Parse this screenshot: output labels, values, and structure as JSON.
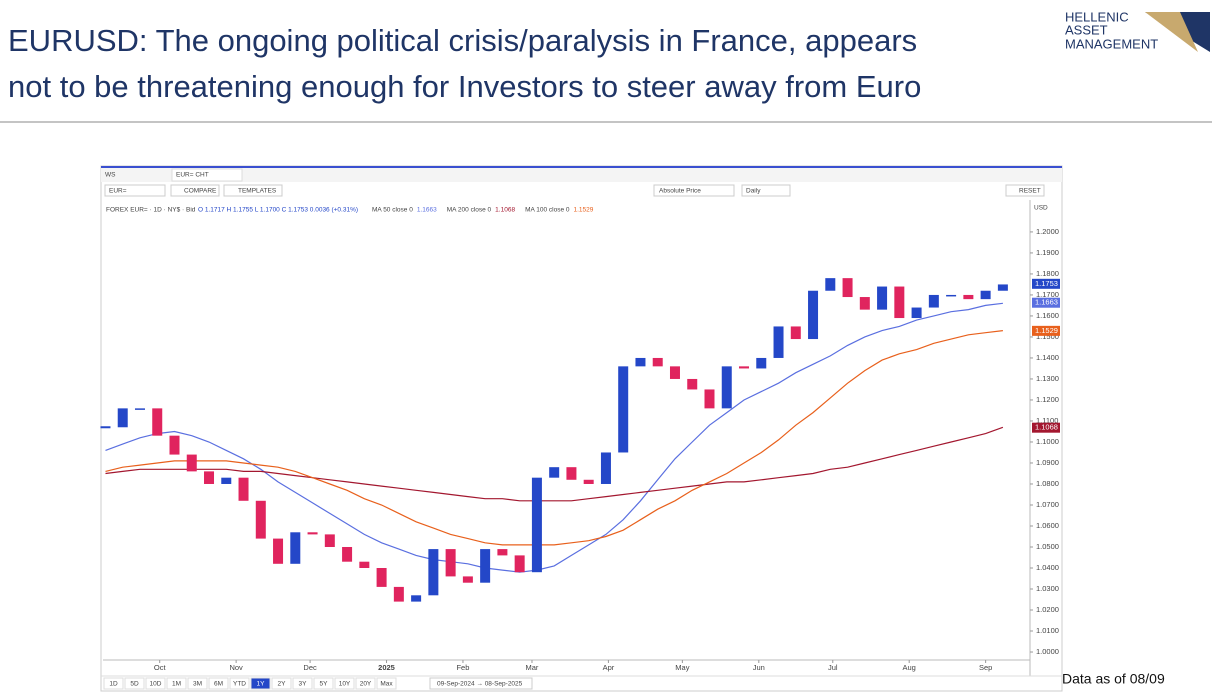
{
  "slide": {
    "title_lines": [
      "EURUSD: The ongoing political crisis/paralysis in France, appears",
      "not to be threatening enough for Investors to steer away from Euro"
    ],
    "logo_lines": [
      "HELLENIC",
      "ASSET",
      "MANAGEMENT"
    ],
    "note": "Data as of 08/09"
  },
  "toolbar": {
    "workspace": "WS",
    "tab": "EUR= CHT",
    "symbol": "EUR=",
    "compare": "COMPARE",
    "templates": "TEMPLATES",
    "price_mode": "Absolute Price",
    "interval": "Daily",
    "reset": "RESET",
    "currency": "USD",
    "ranges": [
      "1D",
      "5D",
      "10D",
      "1M",
      "3M",
      "6M",
      "YTD",
      "1Y",
      "2Y",
      "3Y",
      "5Y",
      "10Y",
      "20Y",
      "Max"
    ],
    "active_range": 7,
    "date_range": "09-Sep-2024 → 08-Sep-2025"
  },
  "chart_data": {
    "type": "candlestick",
    "legend_instrument": "FOREX EUR= · 1D · NY$ · Bid",
    "legend_ohlc": "O 1.1717  H 1.1755  L 1.1700  C 1.1753  0.0036 (+0.31%)",
    "up_color": "#2447c8",
    "down_color": "#e0245e",
    "x": [
      "2024-09-09",
      "2024-09-16",
      "2024-09-23",
      "2024-09-30",
      "2024-10-07",
      "2024-10-14",
      "2024-10-21",
      "2024-10-28",
      "2024-11-04",
      "2024-11-11",
      "2024-11-18",
      "2024-11-25",
      "2024-12-02",
      "2024-12-09",
      "2024-12-16",
      "2024-12-23",
      "2024-12-30",
      "2025-01-06",
      "2025-01-13",
      "2025-01-20",
      "2025-01-27",
      "2025-02-03",
      "2025-02-10",
      "2025-02-17",
      "2025-02-24",
      "2025-03-03",
      "2025-03-10",
      "2025-03-17",
      "2025-03-24",
      "2025-03-31",
      "2025-04-07",
      "2025-04-14",
      "2025-04-21",
      "2025-04-28",
      "2025-05-05",
      "2025-05-12",
      "2025-05-19",
      "2025-05-26",
      "2025-06-02",
      "2025-06-09",
      "2025-06-16",
      "2025-06-23",
      "2025-06-30",
      "2025-07-07",
      "2025-07-14",
      "2025-07-21",
      "2025-07-28",
      "2025-08-04",
      "2025-08-11",
      "2025-08-18",
      "2025-08-25",
      "2025-09-01",
      "2025-09-08"
    ],
    "close": [
      1.107,
      1.116,
      1.116,
      1.103,
      1.094,
      1.086,
      1.08,
      1.083,
      1.072,
      1.054,
      1.042,
      1.057,
      1.056,
      1.05,
      1.043,
      1.04,
      1.031,
      1.024,
      1.027,
      1.049,
      1.036,
      1.033,
      1.049,
      1.046,
      1.038,
      1.083,
      1.088,
      1.082,
      1.08,
      1.095,
      1.136,
      1.14,
      1.136,
      1.13,
      1.125,
      1.116,
      1.136,
      1.135,
      1.14,
      1.155,
      1.149,
      1.172,
      1.178,
      1.169,
      1.163,
      1.174,
      1.159,
      1.164,
      1.17,
      1.17,
      1.168,
      1.172,
      1.175
    ],
    "series": [
      {
        "name": "MA 50 close 0",
        "legend_value": "1.1663",
        "color": "#5a6fe0",
        "values": [
          1.096,
          1.099,
          1.102,
          1.104,
          1.105,
          1.103,
          1.1,
          1.096,
          1.092,
          1.087,
          1.081,
          1.076,
          1.071,
          1.066,
          1.061,
          1.056,
          1.052,
          1.049,
          1.046,
          1.044,
          1.043,
          1.042,
          1.04,
          1.039,
          1.038,
          1.039,
          1.041,
          1.046,
          1.051,
          1.056,
          1.063,
          1.072,
          1.082,
          1.092,
          1.1,
          1.108,
          1.114,
          1.12,
          1.124,
          1.128,
          1.133,
          1.137,
          1.141,
          1.146,
          1.15,
          1.153,
          1.155,
          1.158,
          1.16,
          1.162,
          1.163,
          1.165,
          1.166
        ]
      },
      {
        "name": "MA 200 close 0",
        "legend_value": "1.1068",
        "color": "#a3172f",
        "values": [
          1.085,
          1.086,
          1.087,
          1.087,
          1.087,
          1.087,
          1.087,
          1.087,
          1.086,
          1.086,
          1.085,
          1.084,
          1.083,
          1.082,
          1.081,
          1.08,
          1.079,
          1.078,
          1.077,
          1.076,
          1.075,
          1.074,
          1.073,
          1.073,
          1.072,
          1.072,
          1.072,
          1.072,
          1.073,
          1.074,
          1.075,
          1.076,
          1.077,
          1.078,
          1.079,
          1.08,
          1.081,
          1.081,
          1.082,
          1.083,
          1.084,
          1.085,
          1.087,
          1.088,
          1.09,
          1.092,
          1.094,
          1.096,
          1.098,
          1.1,
          1.102,
          1.104,
          1.107
        ]
      },
      {
        "name": "MA 100 close 0",
        "legend_value": "1.1529",
        "color": "#e8601c",
        "values": [
          1.086,
          1.088,
          1.089,
          1.09,
          1.091,
          1.091,
          1.091,
          1.091,
          1.09,
          1.089,
          1.088,
          1.086,
          1.083,
          1.08,
          1.077,
          1.073,
          1.07,
          1.066,
          1.062,
          1.059,
          1.056,
          1.054,
          1.052,
          1.051,
          1.051,
          1.051,
          1.051,
          1.052,
          1.053,
          1.055,
          1.058,
          1.063,
          1.068,
          1.072,
          1.077,
          1.081,
          1.085,
          1.09,
          1.095,
          1.101,
          1.108,
          1.114,
          1.121,
          1.128,
          1.134,
          1.139,
          1.142,
          1.144,
          1.147,
          1.149,
          1.151,
          1.152,
          1.153
        ]
      }
    ],
    "price_tags": [
      {
        "value": 1.1753,
        "label": "1.1753",
        "color": "#2447c8"
      },
      {
        "value": 1.1663,
        "label": "1.1663",
        "color": "#5a6fe0"
      },
      {
        "value": 1.1529,
        "label": "1.1529",
        "color": "#e8601c"
      },
      {
        "value": 1.1068,
        "label": "1.1068",
        "color": "#a3172f"
      }
    ],
    "xlim": [
      "2024-09-08",
      "2025-09-19"
    ],
    "xticks": [
      {
        "value": "2024-10-01",
        "label": "Oct"
      },
      {
        "value": "2024-11-01",
        "label": "Nov"
      },
      {
        "value": "2024-12-01",
        "label": "Dec"
      },
      {
        "value": "2025-01-01",
        "label": "2025"
      },
      {
        "value": "2025-02-01",
        "label": "Feb"
      },
      {
        "value": "2025-03-01",
        "label": "Mar"
      },
      {
        "value": "2025-04-01",
        "label": "Apr"
      },
      {
        "value": "2025-05-01",
        "label": "May"
      },
      {
        "value": "2025-06-01",
        "label": "Jun"
      },
      {
        "value": "2025-07-01",
        "label": "Jul"
      },
      {
        "value": "2025-08-01",
        "label": "Aug"
      },
      {
        "value": "2025-09-01",
        "label": "Sep"
      }
    ],
    "ylim": [
      0.9962,
      1.2152
    ],
    "yticks": [
      {
        "value": 1.0,
        "label": "1.0000"
      },
      {
        "value": 1.01,
        "label": "1.0100"
      },
      {
        "value": 1.02,
        "label": "1.0200"
      },
      {
        "value": 1.03,
        "label": "1.0300"
      },
      {
        "value": 1.04,
        "label": "1.0400"
      },
      {
        "value": 1.05,
        "label": "1.0500"
      },
      {
        "value": 1.06,
        "label": "1.0600"
      },
      {
        "value": 1.07,
        "label": "1.0700"
      },
      {
        "value": 1.08,
        "label": "1.0800"
      },
      {
        "value": 1.09,
        "label": "1.0900"
      },
      {
        "value": 1.1,
        "label": "1.1000"
      },
      {
        "value": 1.11,
        "label": "1.1100"
      },
      {
        "value": 1.12,
        "label": "1.1200"
      },
      {
        "value": 1.13,
        "label": "1.1300"
      },
      {
        "value": 1.14,
        "label": "1.1400"
      },
      {
        "value": 1.15,
        "label": "1.1500"
      },
      {
        "value": 1.16,
        "label": "1.1600"
      },
      {
        "value": 1.17,
        "label": "1.1700"
      },
      {
        "value": 1.18,
        "label": "1.1800"
      },
      {
        "value": 1.19,
        "label": "1.1900"
      },
      {
        "value": 1.2,
        "label": "1.2000"
      }
    ],
    "grid": false
  }
}
